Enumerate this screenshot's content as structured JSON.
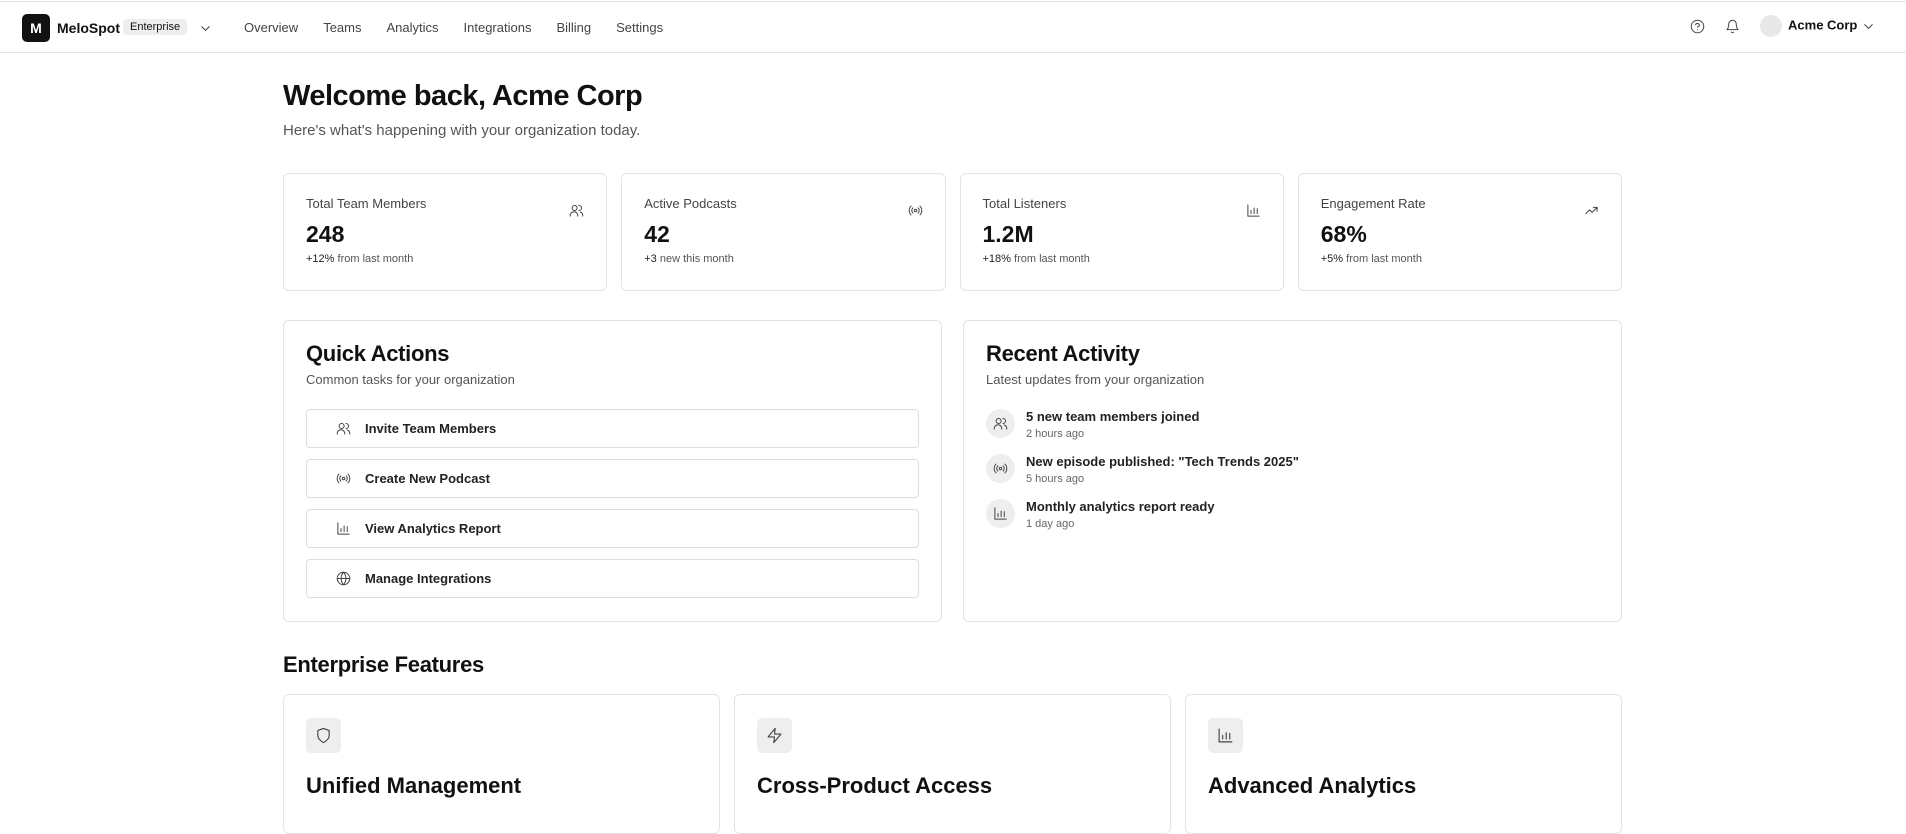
{
  "nav": {
    "logo": "M",
    "brand": "MeloSpot",
    "badge": "Enterprise",
    "links": [
      "Overview",
      "Teams",
      "Analytics",
      "Integrations",
      "Billing",
      "Settings"
    ],
    "user": "Acme Corp"
  },
  "header": {
    "title": "Welcome back, Acme Corp",
    "subtitle": "Here's what's happening with your organization today."
  },
  "stats": [
    {
      "label": "Total Team Members",
      "value": "248",
      "change": "+12%",
      "note": "from last month"
    },
    {
      "label": "Active Podcasts",
      "value": "42",
      "change": "+3",
      "note": "new this month"
    },
    {
      "label": "Total Listeners",
      "value": "1.2M",
      "change": "+18%",
      "note": "from last month"
    },
    {
      "label": "Engagement Rate",
      "value": "68%",
      "change": "+5%",
      "note": "from last month"
    }
  ],
  "quick_actions": {
    "title": "Quick Actions",
    "subtitle": "Common tasks for your organization",
    "items": [
      "Invite Team Members",
      "Create New Podcast",
      "View Analytics Report",
      "Manage Integrations"
    ]
  },
  "recent_activity": {
    "title": "Recent Activity",
    "subtitle": "Latest updates from your organization",
    "items": [
      {
        "text": "5 new team members joined",
        "time": "2 hours ago"
      },
      {
        "text": "New episode published: \"Tech Trends 2025\"",
        "time": "5 hours ago"
      },
      {
        "text": "Monthly analytics report ready",
        "time": "1 day ago"
      }
    ]
  },
  "features": {
    "title": "Enterprise Features",
    "items": [
      "Unified Management",
      "Cross-Product Access",
      "Advanced Analytics"
    ]
  }
}
